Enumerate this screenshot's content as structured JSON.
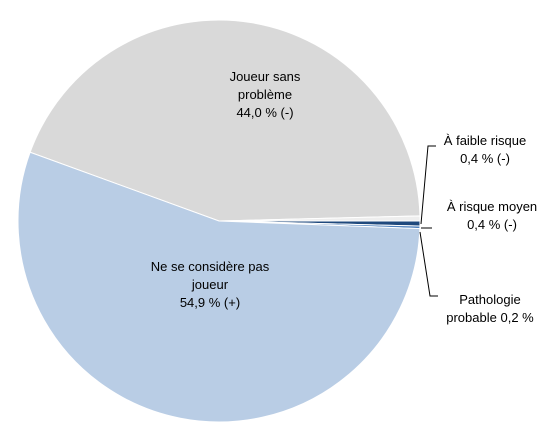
{
  "chart_data": {
    "type": "pie",
    "categories": [
      "Joueur sans problème",
      "À faible risque",
      "À risque moyen",
      "Pathologie probable",
      "Ne se considère pas  joueur"
    ],
    "values": [
      44.0,
      0.4,
      0.4,
      0.2,
      54.9
    ],
    "value_labels": [
      "44,0 % (-)",
      "0,4 % (-)",
      "0,4 % (-)",
      "0,2 %",
      "54,9 % (+)"
    ],
    "colors": [
      "#d9d9d9",
      "#eeeeee",
      "#1f497d",
      "#4f81bd",
      "#b9cde5"
    ]
  }
}
